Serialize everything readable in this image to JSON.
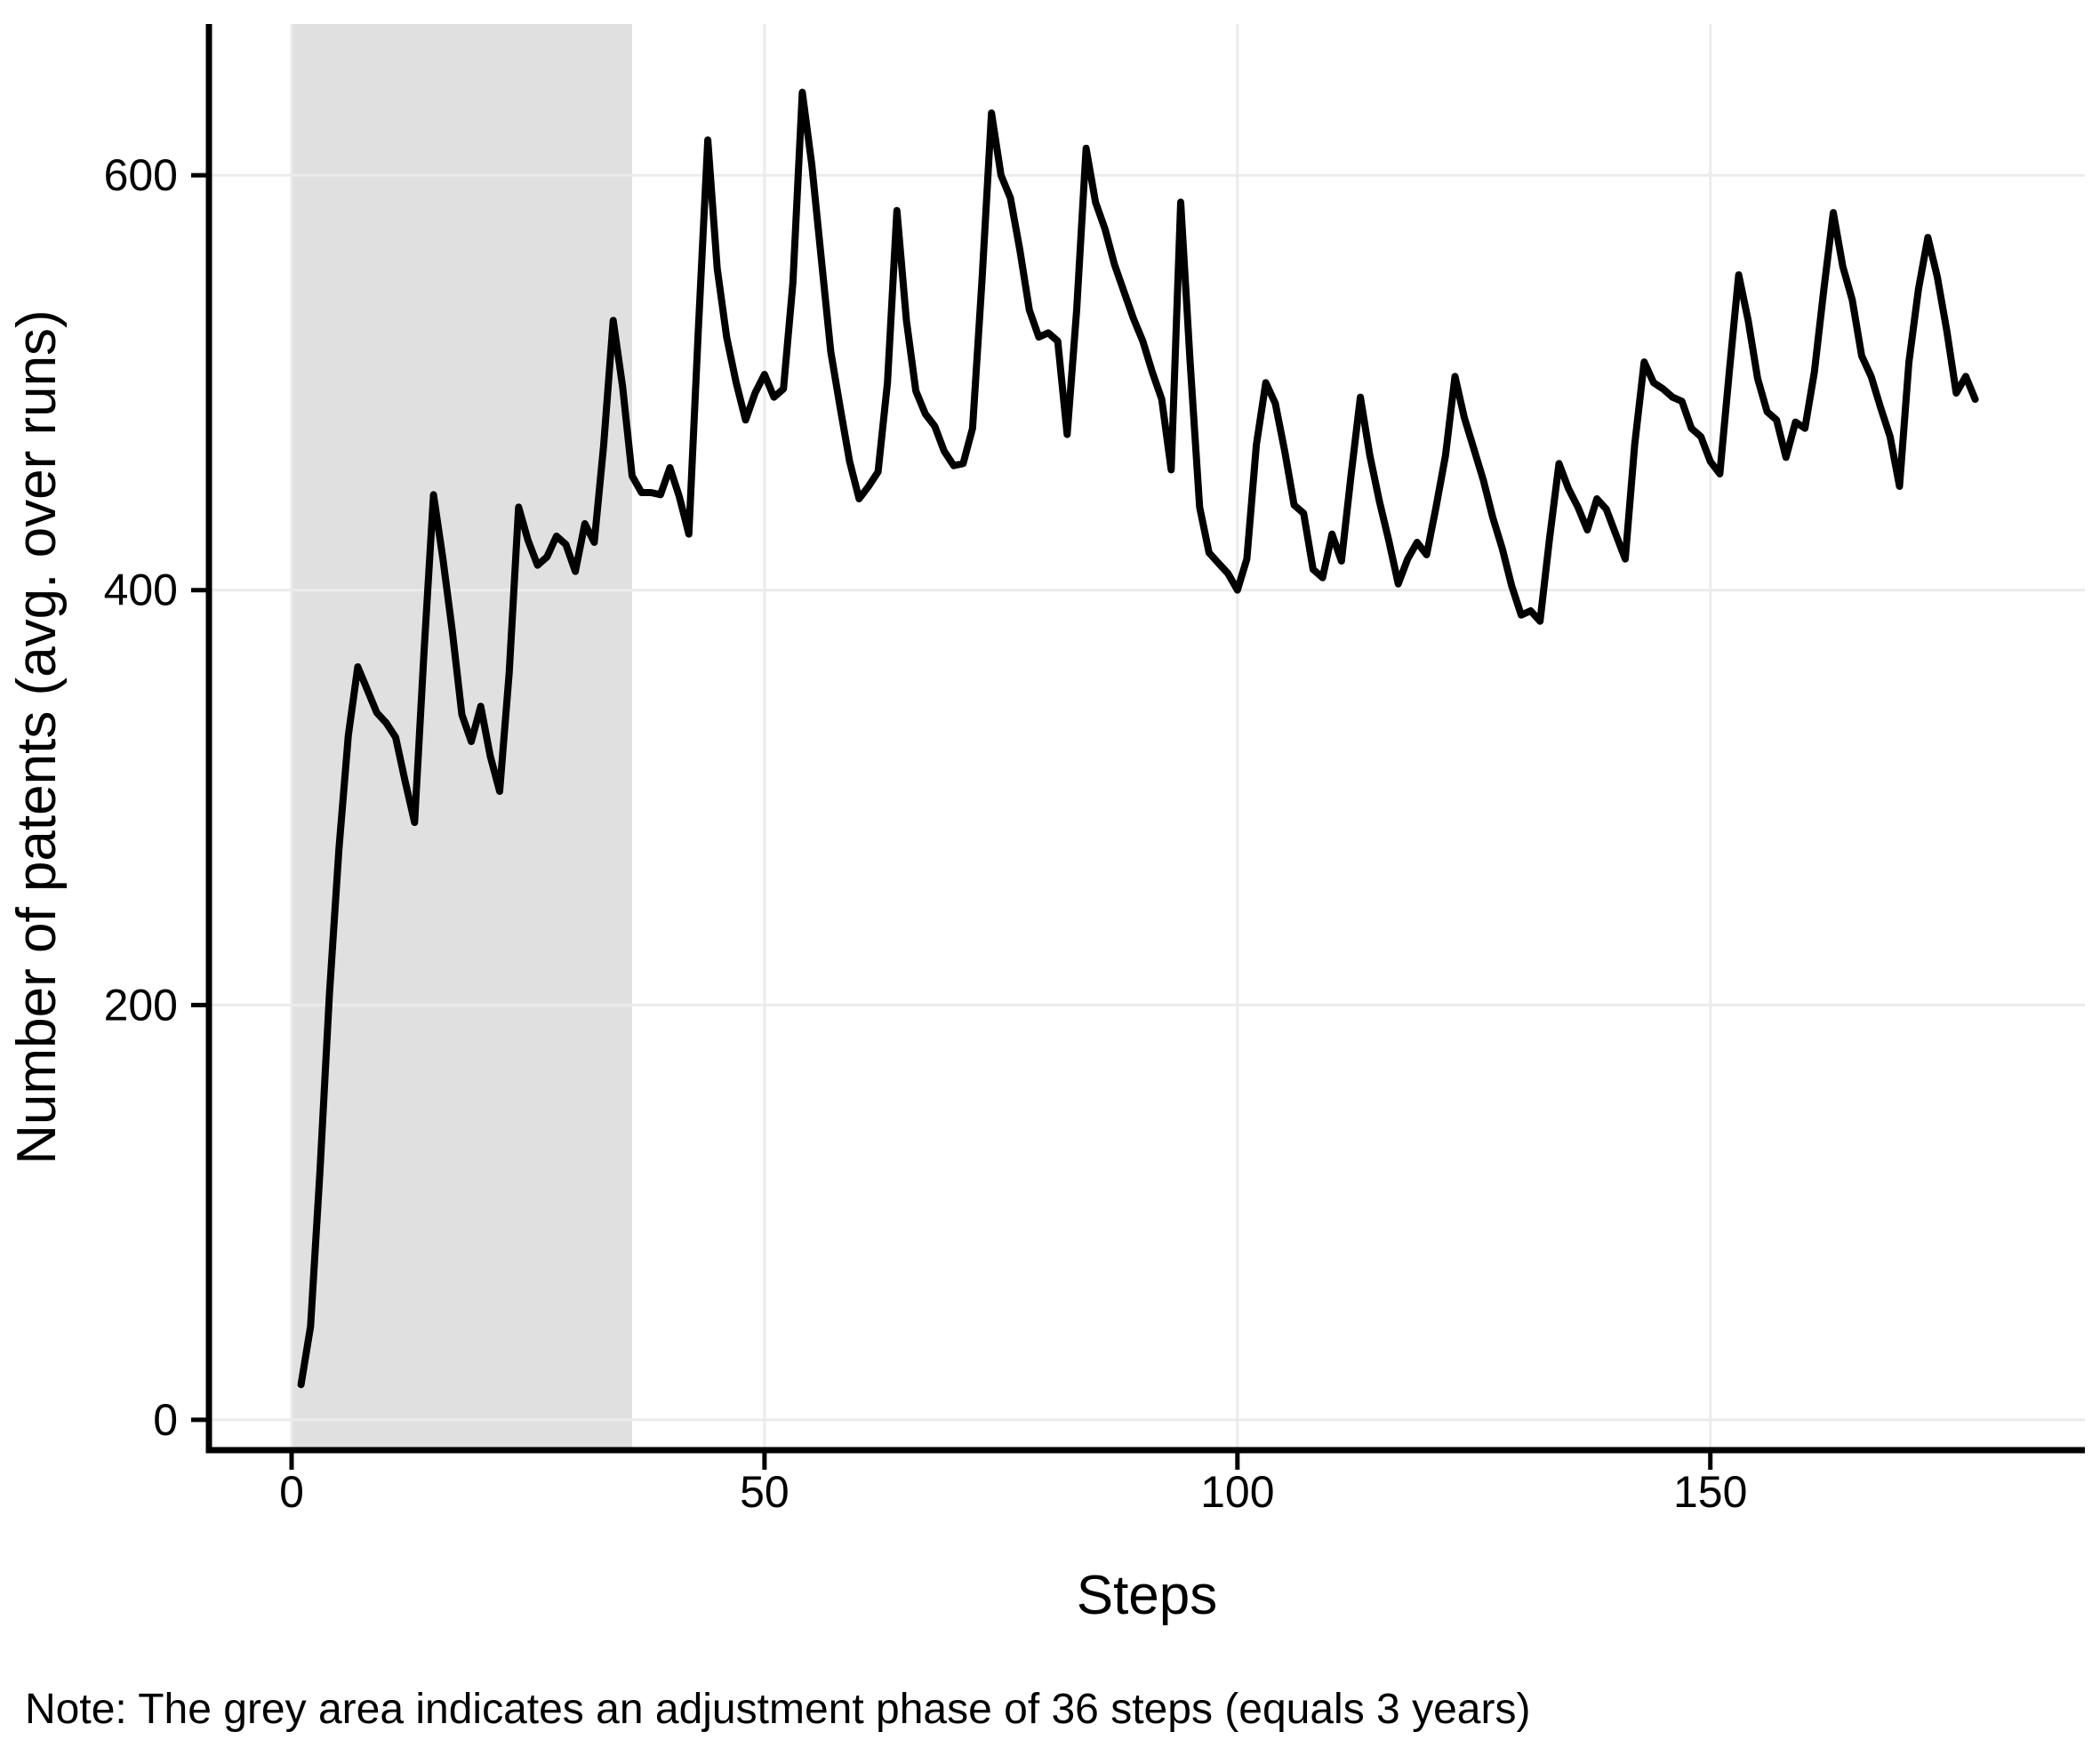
{
  "chart_data": {
    "type": "line",
    "title": "",
    "xlabel": "Steps",
    "ylabel": "Number of patents (avg. over runs)",
    "note": "Note: The grey area indicates an adjustment phase of 36 steps (equals 3 years)",
    "x_ticks": [
      0,
      50,
      100,
      150
    ],
    "y_ticks": [
      0,
      200,
      400,
      600
    ],
    "xlim": [
      -8.74,
      189.6
    ],
    "ylim": [
      -14.6,
      672.9
    ],
    "grid": true,
    "legend_position": "none",
    "line_color": "#000000",
    "line_width": 8,
    "grid_color": "#ebebeb",
    "axis_color": "#000000",
    "background_color": "#ffffff",
    "shaded_region": {
      "x_start": 0,
      "x_end": 36,
      "color": "#e0e0e0",
      "meaning": "adjustment phase of 36 steps (equals 3 years)"
    },
    "series": [
      {
        "name": "Number of patents (avg. over runs)",
        "x": [
          1,
          2,
          3,
          4,
          5,
          6,
          7,
          8,
          9,
          10,
          11,
          12,
          13,
          14,
          15,
          16,
          17,
          18,
          19,
          20,
          21,
          22,
          23,
          24,
          25,
          26,
          27,
          28,
          29,
          30,
          31,
          32,
          33,
          34,
          35,
          36,
          37,
          38,
          39,
          40,
          41,
          42,
          43,
          44,
          45,
          46,
          47,
          48,
          49,
          50,
          51,
          52,
          53,
          54,
          55,
          56,
          57,
          58,
          59,
          60,
          61,
          62,
          63,
          64,
          65,
          66,
          67,
          68,
          69,
          70,
          71,
          72,
          73,
          74,
          75,
          76,
          77,
          78,
          79,
          80,
          81,
          82,
          83,
          84,
          85,
          86,
          87,
          88,
          89,
          90,
          91,
          92,
          93,
          94,
          95,
          96,
          97,
          98,
          99,
          100,
          101,
          102,
          103,
          104,
          105,
          106,
          107,
          108,
          109,
          110,
          111,
          112,
          113,
          114,
          115,
          116,
          117,
          118,
          119,
          120,
          121,
          122,
          123,
          124,
          125,
          126,
          127,
          128,
          129,
          130,
          131,
          132,
          133,
          134,
          135,
          136,
          137,
          138,
          139,
          140,
          141,
          142,
          143,
          144,
          145,
          146,
          147,
          148,
          149,
          150,
          151,
          152,
          153,
          154,
          155,
          156,
          157,
          158,
          159,
          160,
          161,
          162,
          163,
          164,
          165,
          166,
          167,
          168,
          169,
          170,
          171,
          172,
          173,
          174,
          175,
          176,
          177,
          178
        ],
        "values": [
          17,
          45,
          120,
          205,
          275,
          330,
          363,
          352,
          341,
          336,
          329,
          308,
          288,
          370,
          446,
          415,
          380,
          340,
          327,
          344,
          320,
          303,
          360,
          440,
          424,
          412,
          416,
          426,
          422,
          409,
          432,
          423,
          470,
          530,
          498,
          455,
          447,
          447,
          446,
          459,
          445,
          427,
          525,
          617,
          555,
          522,
          500,
          482,
          495,
          504,
          493,
          497,
          548,
          640,
          605,
          560,
          515,
          488,
          462,
          444,
          450,
          457,
          500,
          583,
          530,
          496,
          485,
          479,
          467,
          460,
          461,
          478,
          550,
          630,
          600,
          589,
          564,
          535,
          522,
          524,
          520,
          475,
          535,
          613,
          587,
          574,
          557,
          544,
          531,
          520,
          505,
          492,
          458,
          587,
          510,
          440,
          418,
          413,
          408,
          400,
          415,
          470,
          500,
          490,
          467,
          441,
          437,
          410,
          406,
          427,
          414,
          455,
          493,
          465,
          443,
          424,
          403,
          415,
          423,
          417,
          440,
          465,
          503,
          483,
          468,
          453,
          435,
          420,
          402,
          388,
          390,
          385,
          425,
          461,
          449,
          440,
          429,
          444,
          439,
          427,
          415,
          470,
          510,
          500,
          497,
          493,
          491,
          478,
          474,
          462,
          456,
          505,
          552,
          530,
          502,
          486,
          482,
          464,
          481,
          478,
          505,
          545,
          582,
          556,
          540,
          513,
          503,
          488,
          474,
          450,
          510,
          545,
          570,
          551,
          525,
          495,
          503,
          492
        ]
      }
    ]
  }
}
